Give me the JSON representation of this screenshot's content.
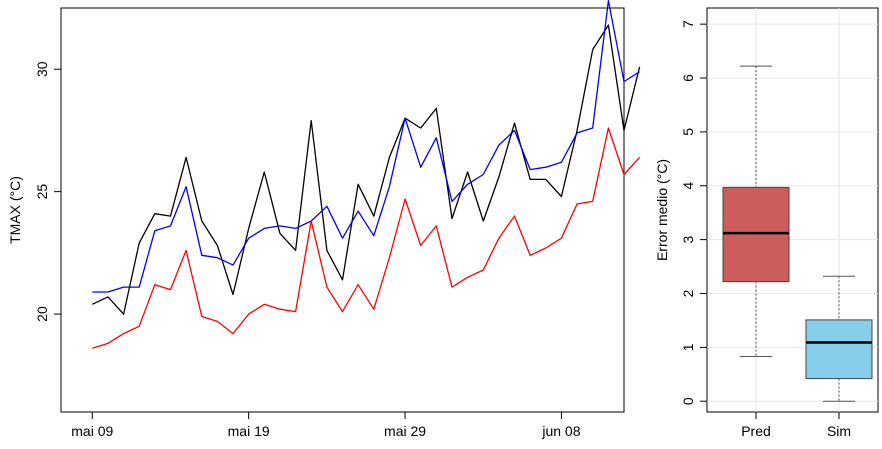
{
  "chart_data": [
    {
      "type": "line",
      "ylabel": "TMAX (°C)",
      "xlabel": "",
      "x_tick_labels": [
        "mai 09",
        "mai 19",
        "mai 29",
        "jun 08"
      ],
      "y_ticks": [
        20,
        25,
        30
      ],
      "ylim": [
        16,
        32.5
      ],
      "x_range_days": [
        -2,
        34
      ],
      "x_tick_days": [
        0,
        10,
        20,
        30
      ],
      "series": [
        {
          "color": "#000000",
          "start_day": 0,
          "values": [
            20.4,
            20.7,
            20.0,
            22.9,
            24.1,
            24.0,
            26.4,
            23.8,
            22.8,
            20.8,
            23.5,
            25.8,
            23.3,
            22.6,
            27.9,
            22.6,
            21.4,
            25.3,
            24.0,
            26.4,
            28.0,
            27.6,
            28.4,
            23.9,
            25.8,
            23.8,
            25.6,
            27.8,
            25.5,
            25.5,
            24.8,
            27.5,
            30.8,
            31.8,
            27.5,
            30.1
          ]
        },
        {
          "color": "#0000ff",
          "start_day": 0,
          "values": [
            20.9,
            20.9,
            21.1,
            21.1,
            23.4,
            23.6,
            25.2,
            22.4,
            22.3,
            22.0,
            23.1,
            23.5,
            23.6,
            23.5,
            23.8,
            24.4,
            23.1,
            24.2,
            23.2,
            25.2,
            28.0,
            26.0,
            27.2,
            24.6,
            25.3,
            25.7,
            26.9,
            27.5,
            25.9,
            26.0,
            26.2,
            27.4,
            27.6,
            32.8,
            29.5,
            29.9
          ]
        },
        {
          "color": "#ff0000",
          "start_day": 0,
          "values": [
            18.6,
            18.8,
            19.2,
            19.5,
            21.2,
            21.0,
            22.6,
            19.9,
            19.7,
            19.2,
            20.0,
            20.4,
            20.2,
            20.1,
            23.8,
            21.1,
            20.1,
            21.2,
            20.2,
            22.3,
            24.7,
            22.8,
            23.6,
            21.1,
            21.5,
            21.8,
            23.1,
            24.0,
            22.4,
            22.7,
            23.1,
            24.5,
            24.6,
            27.6,
            25.7,
            26.4
          ]
        }
      ]
    },
    {
      "type": "boxplot",
      "ylabel": "Error medio (°C)",
      "xlabel": "",
      "categories": [
        "Pred",
        "Sim"
      ],
      "y_ticks": [
        0,
        1,
        2,
        3,
        4,
        5,
        6,
        7
      ],
      "ylim": [
        -0.2,
        7.3
      ],
      "grid": true,
      "boxes": [
        {
          "label": "Pred",
          "min": 0.83,
          "q1": 2.22,
          "median": 3.12,
          "q3": 3.97,
          "max": 6.22,
          "color": "#cd5c5c"
        },
        {
          "label": "Sim",
          "min": 0.0,
          "q1": 0.42,
          "median": 1.09,
          "q3": 1.51,
          "max": 2.32,
          "color": "#87ceeb"
        }
      ]
    }
  ]
}
